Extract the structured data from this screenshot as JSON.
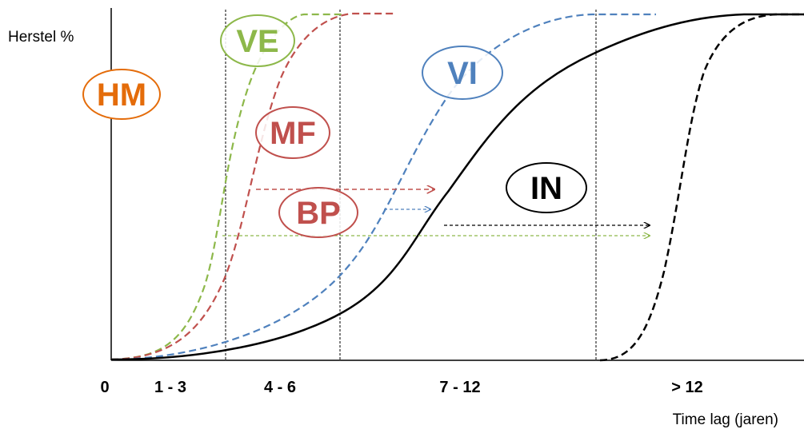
{
  "axes": {
    "ylabel": "Herstel %",
    "xlabel": "Time lag (jaren)",
    "tick_labels": [
      "0",
      "1 - 3",
      "4 - 6",
      "7 - 12",
      "> 12"
    ]
  },
  "badges": [
    {
      "label": "HM",
      "color": "#e46c0a"
    },
    {
      "label": "VE",
      "color": "#8db84a"
    },
    {
      "label": "MF",
      "color": "#c0504d"
    },
    {
      "label": "BP",
      "color": "#c0504d"
    },
    {
      "label": "VI",
      "color": "#4f81bd"
    },
    {
      "label": "IN",
      "color": "#000000"
    }
  ],
  "curves": [
    {
      "name": "VE",
      "color": "#8db84a",
      "style": "dashed"
    },
    {
      "name": "MF",
      "color": "#c0504d",
      "style": "dashed"
    },
    {
      "name": "VI",
      "color": "#4f81bd",
      "style": "dashed"
    },
    {
      "name": "IN",
      "color": "#000000",
      "style": "solid"
    },
    {
      "name": "> 12",
      "color": "#000000",
      "style": "dashed"
    }
  ],
  "arrows": [
    {
      "name": "MF",
      "color": "#c0504d"
    },
    {
      "name": "BP",
      "color": "#4f81bd"
    },
    {
      "name": "IN",
      "color": "#000000"
    },
    {
      "name": "VE",
      "color": "#8db84a"
    }
  ]
}
